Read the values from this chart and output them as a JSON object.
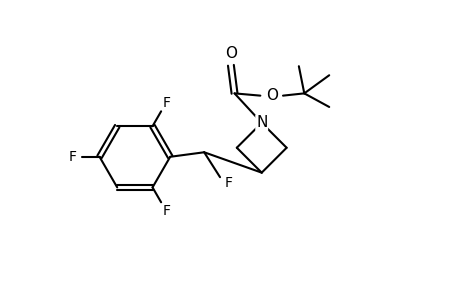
{
  "background_color": "#ffffff",
  "line_color": "#000000",
  "line_width": 1.5,
  "font_size": 10,
  "figsize": [
    4.6,
    3.0
  ],
  "dpi": 100,
  "xlim": [
    0,
    10
  ],
  "ylim": [
    0,
    6.5
  ]
}
